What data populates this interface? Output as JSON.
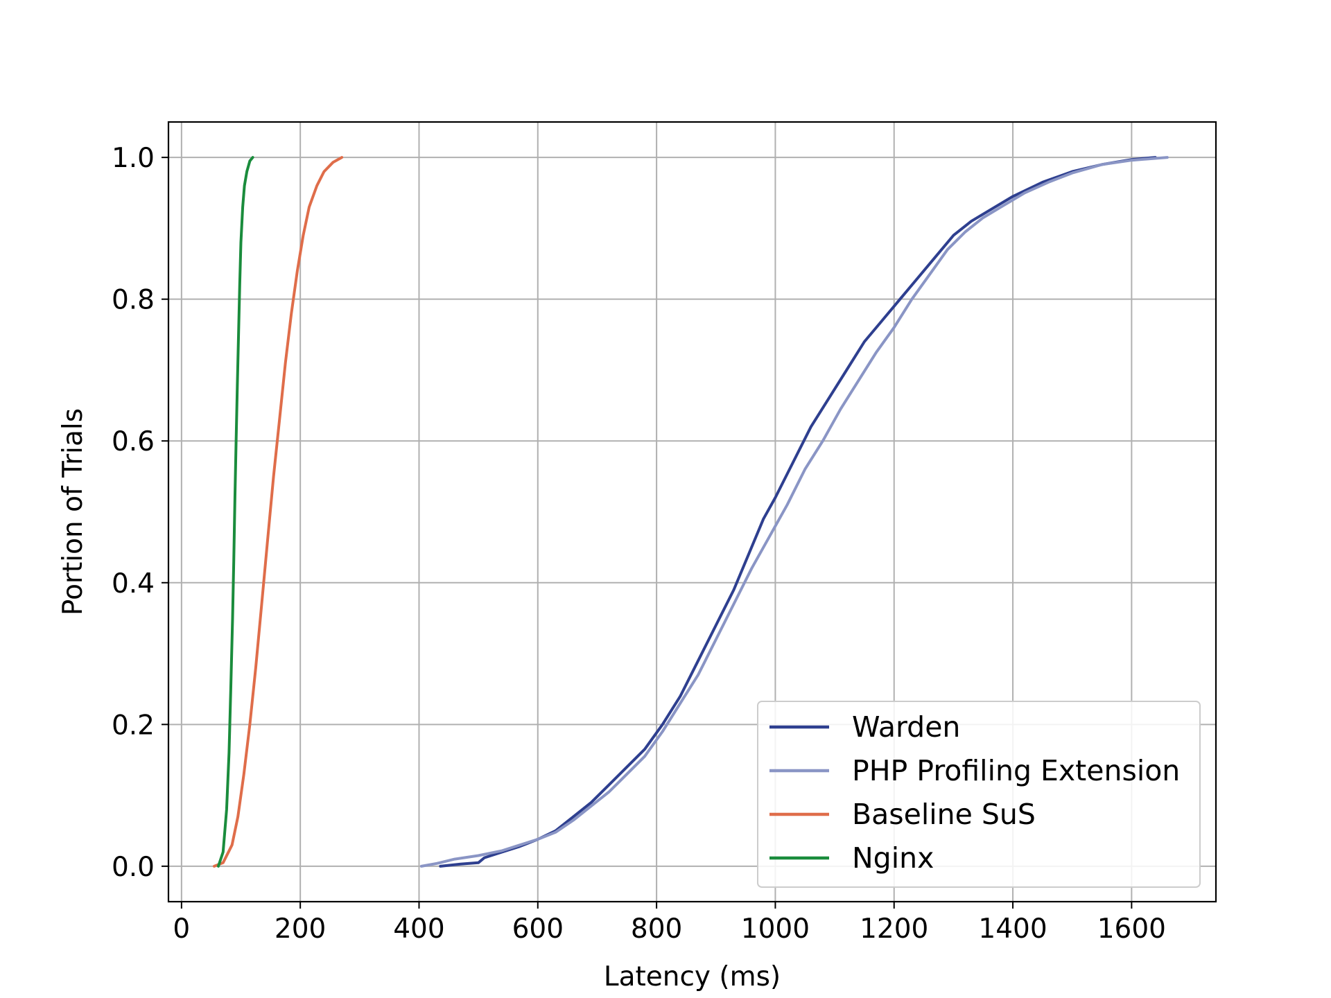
{
  "chart_data": {
    "type": "line",
    "title": "",
    "xlabel": "Latency (ms)",
    "ylabel": "Portion of Trials",
    "xlim": [
      -22,
      1742
    ],
    "ylim": [
      -0.05,
      1.05
    ],
    "x_ticks": [
      "0",
      "200",
      "400",
      "600",
      "800",
      "1000",
      "1200",
      "1400",
      "1600"
    ],
    "y_ticks": [
      "0.0",
      "0.2",
      "0.4",
      "0.6",
      "0.8",
      "1.0"
    ],
    "grid": true,
    "legend_position": "lower-right",
    "series": [
      {
        "name": "Warden",
        "color": "#2e3f8f",
        "points": [
          [
            436,
            0.0
          ],
          [
            470,
            0.003
          ],
          [
            500,
            0.005
          ],
          [
            510,
            0.012
          ],
          [
            540,
            0.02
          ],
          [
            570,
            0.028
          ],
          [
            600,
            0.038
          ],
          [
            630,
            0.05
          ],
          [
            660,
            0.07
          ],
          [
            690,
            0.09
          ],
          [
            720,
            0.115
          ],
          [
            750,
            0.14
          ],
          [
            780,
            0.165
          ],
          [
            810,
            0.2
          ],
          [
            840,
            0.24
          ],
          [
            870,
            0.29
          ],
          [
            900,
            0.34
          ],
          [
            930,
            0.39
          ],
          [
            955,
            0.44
          ],
          [
            980,
            0.49
          ],
          [
            1000,
            0.52
          ],
          [
            1030,
            0.57
          ],
          [
            1060,
            0.62
          ],
          [
            1090,
            0.66
          ],
          [
            1120,
            0.7
          ],
          [
            1150,
            0.74
          ],
          [
            1180,
            0.77
          ],
          [
            1210,
            0.8
          ],
          [
            1240,
            0.83
          ],
          [
            1270,
            0.86
          ],
          [
            1300,
            0.89
          ],
          [
            1330,
            0.91
          ],
          [
            1360,
            0.925
          ],
          [
            1400,
            0.945
          ],
          [
            1450,
            0.965
          ],
          [
            1500,
            0.98
          ],
          [
            1550,
            0.99
          ],
          [
            1600,
            0.997
          ],
          [
            1640,
            1.0
          ]
        ]
      },
      {
        "name": "PHP Profiling Extension",
        "color": "#8a95c5",
        "points": [
          [
            404,
            0.0
          ],
          [
            430,
            0.004
          ],
          [
            460,
            0.01
          ],
          [
            500,
            0.015
          ],
          [
            540,
            0.022
          ],
          [
            570,
            0.03
          ],
          [
            600,
            0.038
          ],
          [
            630,
            0.048
          ],
          [
            660,
            0.065
          ],
          [
            690,
            0.085
          ],
          [
            720,
            0.105
          ],
          [
            750,
            0.13
          ],
          [
            780,
            0.155
          ],
          [
            810,
            0.19
          ],
          [
            840,
            0.23
          ],
          [
            870,
            0.27
          ],
          [
            900,
            0.32
          ],
          [
            930,
            0.37
          ],
          [
            960,
            0.42
          ],
          [
            990,
            0.465
          ],
          [
            1020,
            0.51
          ],
          [
            1050,
            0.56
          ],
          [
            1080,
            0.6
          ],
          [
            1110,
            0.645
          ],
          [
            1140,
            0.685
          ],
          [
            1170,
            0.725
          ],
          [
            1200,
            0.76
          ],
          [
            1230,
            0.8
          ],
          [
            1260,
            0.835
          ],
          [
            1290,
            0.87
          ],
          [
            1320,
            0.895
          ],
          [
            1350,
            0.915
          ],
          [
            1380,
            0.93
          ],
          [
            1420,
            0.95
          ],
          [
            1460,
            0.965
          ],
          [
            1500,
            0.978
          ],
          [
            1550,
            0.99
          ],
          [
            1600,
            0.996
          ],
          [
            1660,
            1.0
          ]
        ]
      },
      {
        "name": "Baseline SuS",
        "color": "#df6d4a",
        "points": [
          [
            55,
            0.0
          ],
          [
            70,
            0.005
          ],
          [
            85,
            0.03
          ],
          [
            95,
            0.07
          ],
          [
            105,
            0.13
          ],
          [
            115,
            0.2
          ],
          [
            125,
            0.28
          ],
          [
            135,
            0.37
          ],
          [
            145,
            0.46
          ],
          [
            155,
            0.55
          ],
          [
            165,
            0.63
          ],
          [
            175,
            0.71
          ],
          [
            185,
            0.78
          ],
          [
            195,
            0.84
          ],
          [
            205,
            0.89
          ],
          [
            215,
            0.93
          ],
          [
            228,
            0.96
          ],
          [
            240,
            0.98
          ],
          [
            255,
            0.993
          ],
          [
            270,
            1.0
          ]
        ]
      },
      {
        "name": "Nginx",
        "color": "#1a8c3c",
        "points": [
          [
            62,
            0.0
          ],
          [
            70,
            0.02
          ],
          [
            76,
            0.08
          ],
          [
            80,
            0.16
          ],
          [
            83,
            0.25
          ],
          [
            86,
            0.35
          ],
          [
            88,
            0.43
          ],
          [
            90,
            0.52
          ],
          [
            92,
            0.6
          ],
          [
            94,
            0.68
          ],
          [
            96,
            0.75
          ],
          [
            98,
            0.82
          ],
          [
            100,
            0.88
          ],
          [
            103,
            0.93
          ],
          [
            106,
            0.96
          ],
          [
            110,
            0.98
          ],
          [
            115,
            0.995
          ],
          [
            120,
            1.0
          ]
        ]
      }
    ]
  }
}
